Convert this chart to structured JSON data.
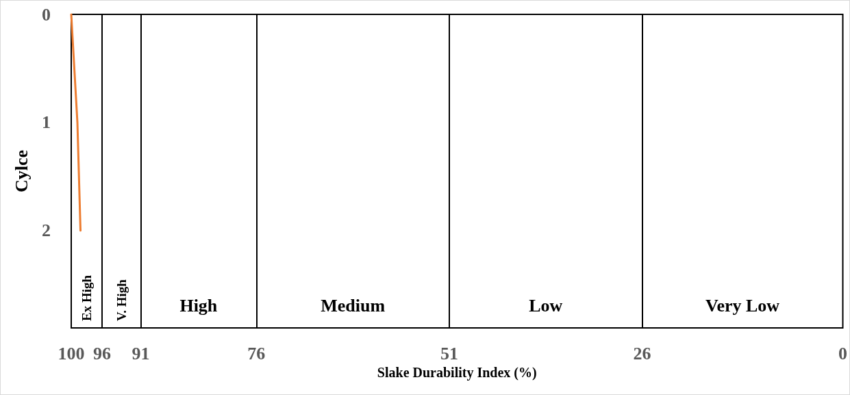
{
  "chart_data": {
    "type": "line",
    "xlabel": "Slake Durability Index (%)",
    "ylabel": "Cylce",
    "x": [
      100,
      99.2,
      98.8
    ],
    "series": [
      {
        "color": "#ed7d31",
        "values": [
          0,
          1,
          2
        ]
      }
    ],
    "xlim": [
      100,
      0
    ],
    "xticks": [
      100,
      96,
      91,
      76,
      51,
      26,
      0
    ],
    "ylim": [
      2.9,
      0
    ],
    "yticks": [
      0,
      1,
      2
    ],
    "marker": "none",
    "line_style": "solid",
    "grid": false,
    "ref_lines": [
      {
        "axis": "x",
        "value": 96,
        "color": "#000000"
      },
      {
        "axis": "x",
        "value": 91,
        "color": "#000000"
      },
      {
        "axis": "x",
        "value": 76,
        "color": "#000000"
      },
      {
        "axis": "x",
        "value": 51,
        "color": "#000000"
      },
      {
        "axis": "x",
        "value": 26,
        "color": "#000000"
      }
    ],
    "annotations": [
      "Ex High",
      "V. High",
      "High",
      "Medium",
      "Low",
      "Very Low"
    ]
  }
}
